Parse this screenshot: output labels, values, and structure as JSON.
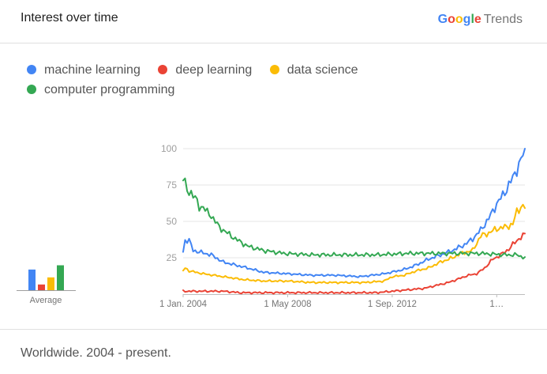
{
  "header": {
    "title": "Interest over time",
    "brand": {
      "google_letters": [
        {
          "ch": "G",
          "color": "#4285F4"
        },
        {
          "ch": "o",
          "color": "#EA4335"
        },
        {
          "ch": "o",
          "color": "#FBBC05"
        },
        {
          "ch": "g",
          "color": "#4285F4"
        },
        {
          "ch": "l",
          "color": "#34A853"
        },
        {
          "ch": "e",
          "color": "#EA4335"
        }
      ],
      "trends": "Trends"
    }
  },
  "footer": {
    "text": "Worldwide. 2004 - present."
  },
  "average": {
    "label": "Average"
  },
  "chart_data": {
    "type": "line",
    "title": "",
    "xlabel": "",
    "ylabel": "",
    "ylim": [
      0,
      100
    ],
    "yticks": [
      25,
      50,
      75,
      100
    ],
    "grid": true,
    "legend": "top-left",
    "x_ticks": [
      {
        "label": "1 Jan. 2004",
        "month_index": 0
      },
      {
        "label": "1 May 2008",
        "month_index": 52
      },
      {
        "label": "1 Sep. 2012",
        "month_index": 104
      },
      {
        "label": "1…",
        "month_index": 156
      }
    ],
    "x_range": [
      "2004-01",
      "2019-10"
    ],
    "series": [
      {
        "name": "machine learning",
        "color": "#4285F4",
        "average": 29,
        "keypoints": [
          [
            0,
            29
          ],
          [
            1,
            37
          ],
          [
            3,
            37
          ],
          [
            5,
            30
          ],
          [
            8,
            29
          ],
          [
            14,
            27
          ],
          [
            20,
            22
          ],
          [
            26,
            20
          ],
          [
            32,
            18
          ],
          [
            40,
            15
          ],
          [
            52,
            14
          ],
          [
            64,
            13
          ],
          [
            76,
            13
          ],
          [
            88,
            12
          ],
          [
            100,
            14
          ],
          [
            110,
            17
          ],
          [
            116,
            20
          ],
          [
            122,
            24
          ],
          [
            128,
            27
          ],
          [
            134,
            30
          ],
          [
            140,
            34
          ],
          [
            144,
            38
          ],
          [
            148,
            44
          ],
          [
            152,
            52
          ],
          [
            156,
            62
          ],
          [
            160,
            70
          ],
          [
            164,
            80
          ],
          [
            168,
            92
          ],
          [
            170,
            100
          ]
        ]
      },
      {
        "name": "deep learning",
        "color": "#EA4335",
        "average": 8,
        "keypoints": [
          [
            0,
            2
          ],
          [
            20,
            2
          ],
          [
            28,
            1
          ],
          [
            60,
            1
          ],
          [
            84,
            1
          ],
          [
            96,
            1
          ],
          [
            104,
            2
          ],
          [
            112,
            3
          ],
          [
            120,
            4
          ],
          [
            126,
            6
          ],
          [
            132,
            8
          ],
          [
            138,
            11
          ],
          [
            142,
            13
          ],
          [
            146,
            14
          ],
          [
            150,
            18
          ],
          [
            154,
            24
          ],
          [
            158,
            27
          ],
          [
            162,
            31
          ],
          [
            166,
            37
          ],
          [
            170,
            41
          ]
        ]
      },
      {
        "name": "data science",
        "color": "#FBBC05",
        "average": 18,
        "keypoints": [
          [
            0,
            16
          ],
          [
            1,
            18
          ],
          [
            3,
            16
          ],
          [
            10,
            14
          ],
          [
            20,
            12
          ],
          [
            30,
            10
          ],
          [
            40,
            9
          ],
          [
            52,
            9
          ],
          [
            64,
            8
          ],
          [
            76,
            8
          ],
          [
            90,
            8
          ],
          [
            100,
            9
          ],
          [
            104,
            12
          ],
          [
            110,
            13
          ],
          [
            116,
            16
          ],
          [
            122,
            18
          ],
          [
            128,
            22
          ],
          [
            134,
            25
          ],
          [
            138,
            28
          ],
          [
            144,
            30
          ],
          [
            148,
            40
          ],
          [
            152,
            42
          ],
          [
            156,
            45
          ],
          [
            160,
            46
          ],
          [
            164,
            48
          ],
          [
            166,
            57
          ],
          [
            168,
            60
          ],
          [
            170,
            60
          ]
        ]
      },
      {
        "name": "computer programming",
        "color": "#34A853",
        "average": 35,
        "keypoints": [
          [
            0,
            80
          ],
          [
            2,
            71
          ],
          [
            4,
            70
          ],
          [
            6,
            66
          ],
          [
            8,
            60
          ],
          [
            10,
            60
          ],
          [
            12,
            56
          ],
          [
            14,
            54
          ],
          [
            16,
            50
          ],
          [
            18,
            46
          ],
          [
            20,
            44
          ],
          [
            22,
            42
          ],
          [
            26,
            38
          ],
          [
            32,
            33
          ],
          [
            40,
            30
          ],
          [
            50,
            28
          ],
          [
            64,
            27
          ],
          [
            80,
            27
          ],
          [
            96,
            27
          ],
          [
            112,
            28
          ],
          [
            124,
            28
          ],
          [
            136,
            28
          ],
          [
            148,
            28
          ],
          [
            160,
            27
          ],
          [
            166,
            27
          ],
          [
            170,
            25
          ]
        ]
      }
    ]
  }
}
